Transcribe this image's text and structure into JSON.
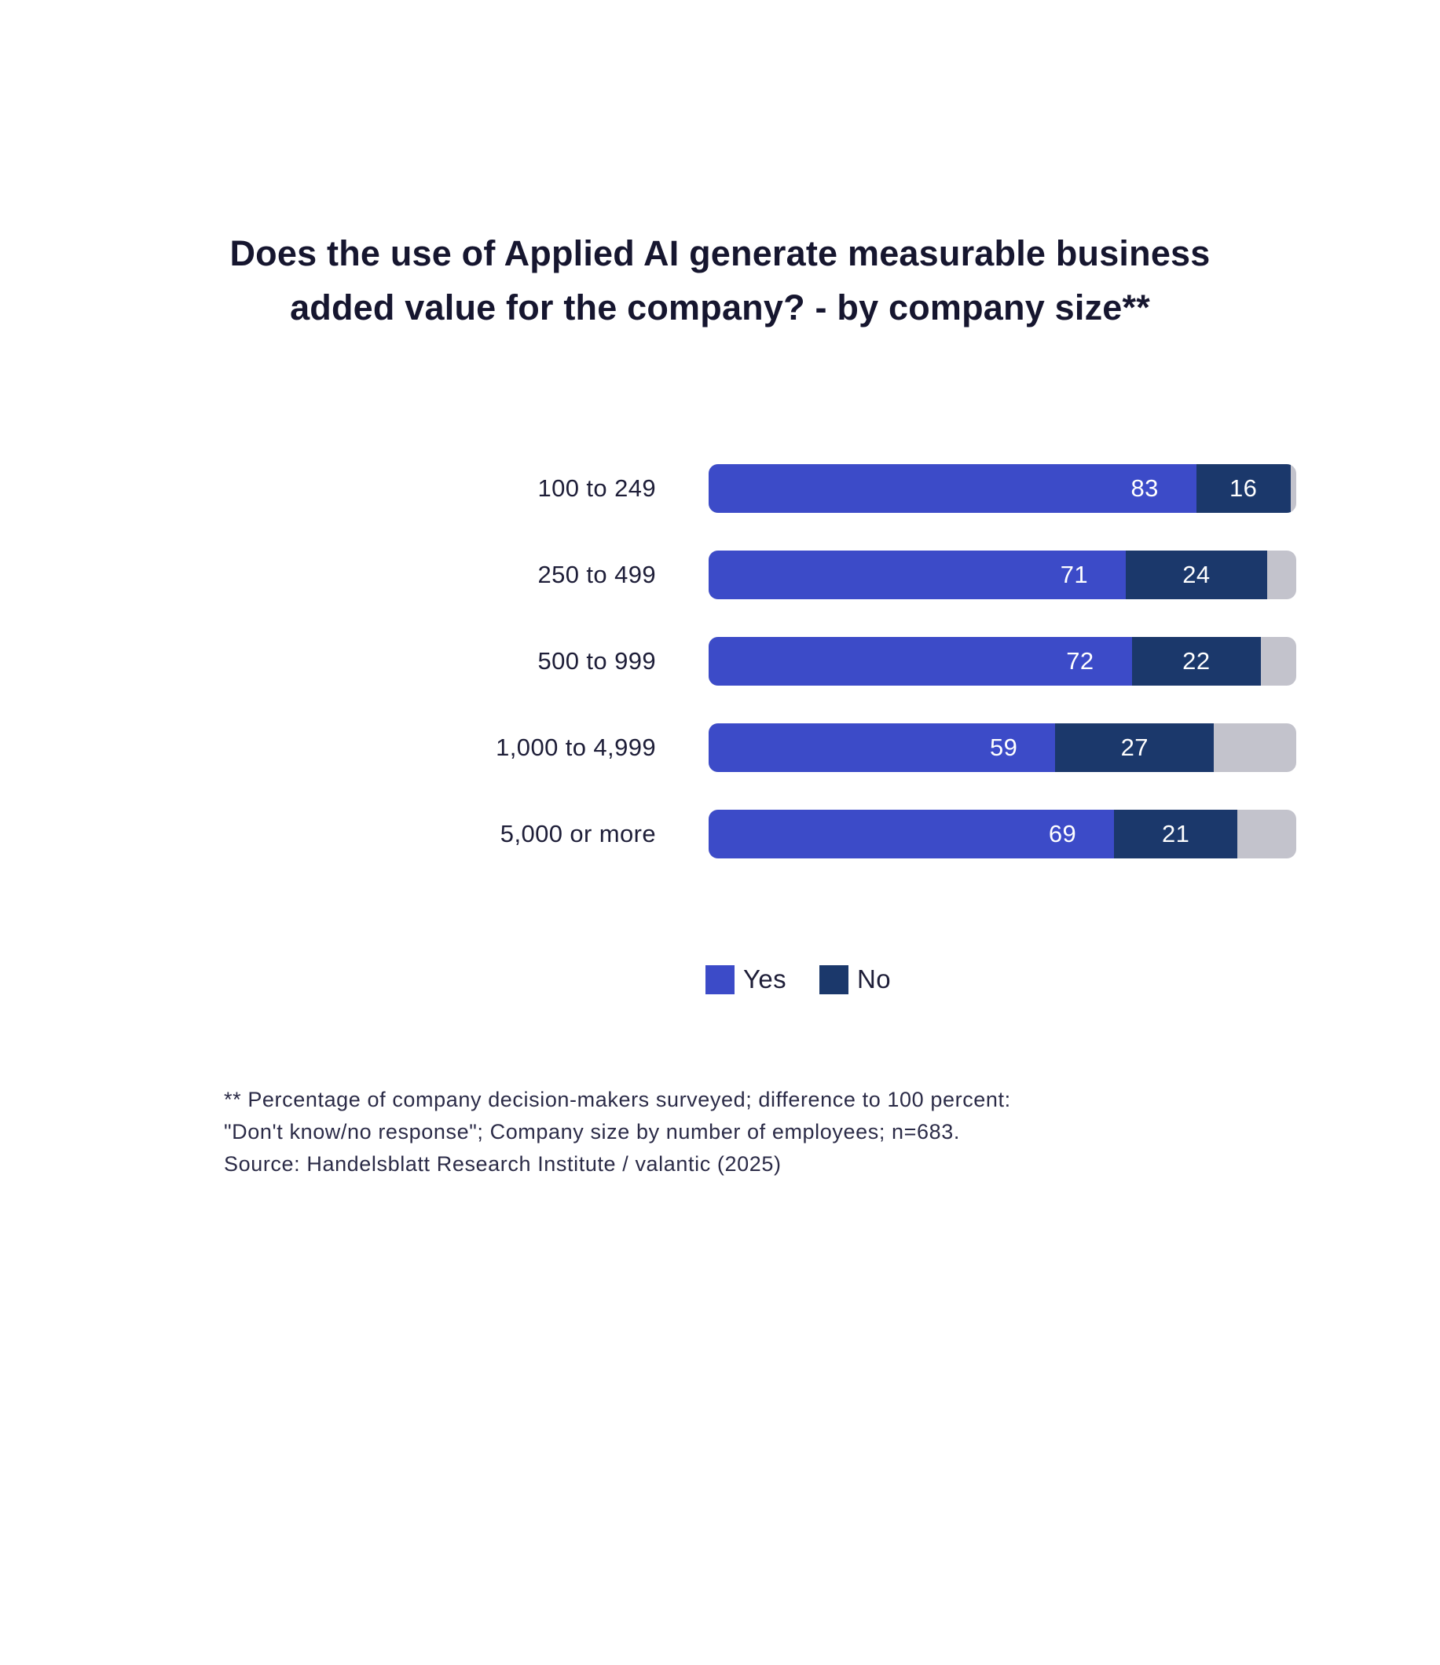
{
  "title": {
    "line1": "Does the use of Applied AI generate measurable business",
    "line2": "added value for the company? - by company size**"
  },
  "chart_data": {
    "type": "bar",
    "orientation": "horizontal",
    "stacked": true,
    "x_max": 100,
    "grid": false,
    "legend_position": "bottom",
    "value_labels": "inside, white",
    "categories": [
      "100 to 249",
      "250 to 499",
      "500 to 999",
      "1,000 to 4,999",
      "5,000 or more"
    ],
    "series": [
      {
        "name": "Yes",
        "color": "#3C4BC8",
        "values": [
          83,
          71,
          72,
          59,
          69
        ]
      },
      {
        "name": "No",
        "color": "#1B386B",
        "values": [
          16,
          24,
          22,
          27,
          21
        ]
      }
    ],
    "remainder": {
      "meaning": "Don't know/no response (difference to 100 percent)",
      "color": "#C3C3CC",
      "values": [
        1,
        5,
        6,
        14,
        10
      ]
    }
  },
  "legend": {
    "items": [
      {
        "label": "Yes",
        "color": "#3C4BC8"
      },
      {
        "label": "No",
        "color": "#1B386B"
      }
    ]
  },
  "footnote": {
    "line1": "** Percentage of company decision-makers surveyed; difference to 100 percent:",
    "line2": "\"Don't know/no response\"; Company size by number of employees; n=683.",
    "line3": "Source: Handelsblatt Research Institute / valantic (2025)"
  }
}
